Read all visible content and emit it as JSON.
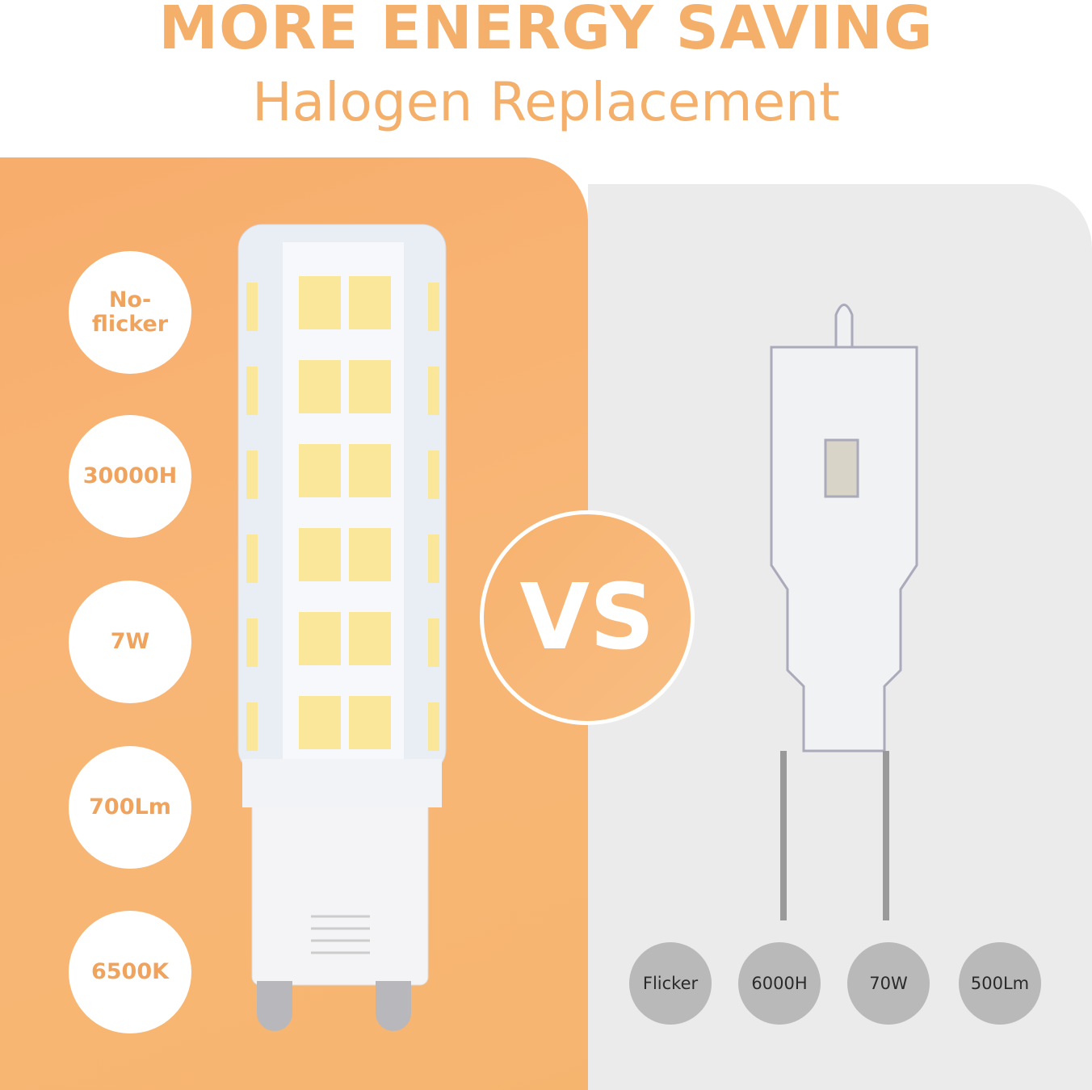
{
  "header": {
    "title": "MORE ENERGY SAVING",
    "subtitle": "Halogen Replacement"
  },
  "led": {
    "features": [
      "No-\nflicker",
      "30000H",
      "7W",
      "700Lm",
      "6500K"
    ]
  },
  "vs_label": "VS",
  "halogen": {
    "features": [
      "Flicker",
      "6000H",
      "70W",
      "500Lm"
    ]
  },
  "colors": {
    "accent": "#f4b06b",
    "panel_gray": "#ebebeb",
    "circle_gray": "#b9b9b9"
  }
}
